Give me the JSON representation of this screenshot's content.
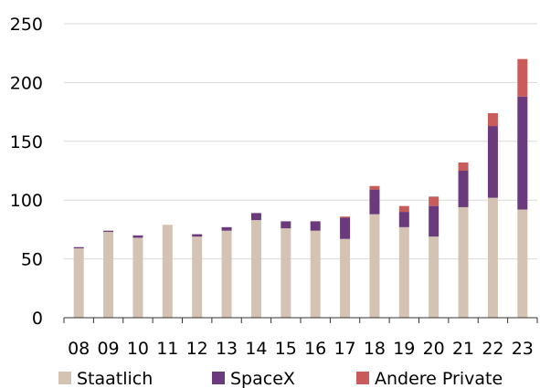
{
  "chart_data": {
    "type": "bar",
    "stacked": true,
    "categories": [
      "08",
      "09",
      "10",
      "11",
      "12",
      "13",
      "14",
      "15",
      "16",
      "17",
      "18",
      "19",
      "20",
      "21",
      "22",
      "23"
    ],
    "series": [
      {
        "name": "Staatlich",
        "color": "#d4c3b3",
        "values": [
          59,
          73,
          68,
          79,
          69,
          74,
          83,
          76,
          74,
          67,
          88,
          77,
          69,
          94,
          102,
          92
        ]
      },
      {
        "name": "SpaceX",
        "color": "#6b3a7d",
        "values": [
          1,
          1,
          2,
          0,
          2,
          3,
          6,
          6,
          8,
          18,
          21,
          13,
          26,
          31,
          61,
          96
        ]
      },
      {
        "name": "Andere Private",
        "color": "#c95b5b",
        "values": [
          0,
          0,
          0,
          0,
          0,
          0,
          0,
          0,
          0,
          1,
          3,
          5,
          8,
          7,
          11,
          32
        ]
      }
    ],
    "ylim": [
      0,
      250
    ],
    "yticks": [
      0,
      50,
      100,
      150,
      200,
      250
    ],
    "grid": true,
    "legend_position": "bottom",
    "grid_color": "#d9d9d9",
    "axis_color": "#333333"
  }
}
